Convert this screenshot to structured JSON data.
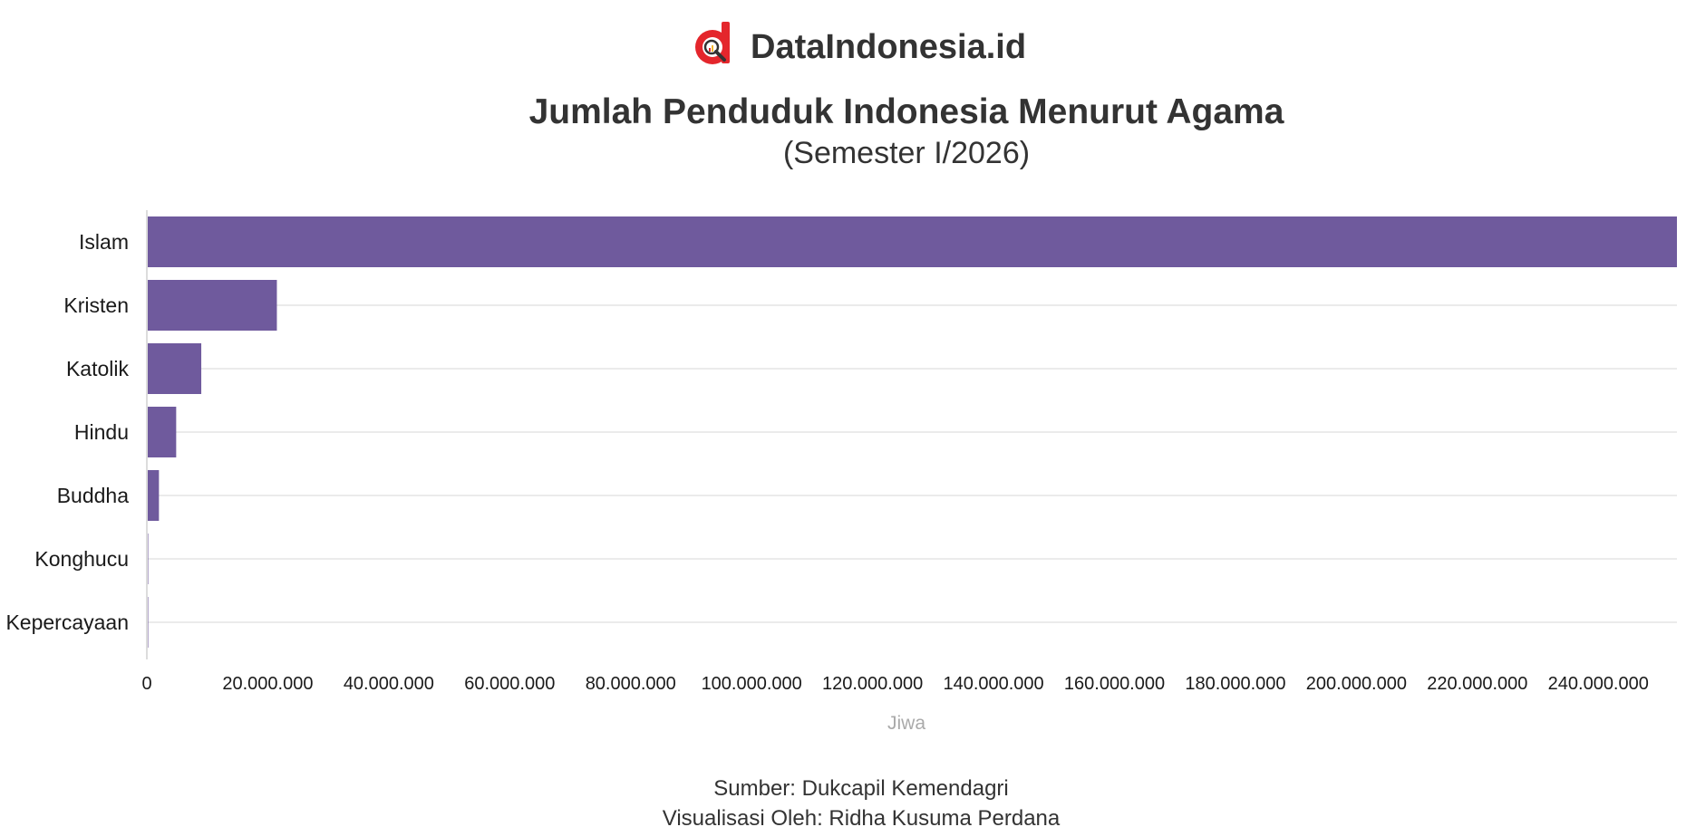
{
  "brand": {
    "name": "DataIndonesia.id",
    "logo_icon": "datainsight-magnifier-logo",
    "logo_color": "#e4262c"
  },
  "chart_data": {
    "type": "bar",
    "orientation": "horizontal",
    "title": "Jumlah Penduduk Indonesia Menurut Agama",
    "subtitle": "(Semester I/2026)",
    "categories": [
      "Islam",
      "Kristen",
      "Katolik",
      "Hindu",
      "Buddha",
      "Konghucu",
      "Kepercayaan"
    ],
    "values": [
      253000000,
      21500000,
      9000000,
      4850000,
      2000000,
      75000,
      100000
    ],
    "xlabel": "Jiwa",
    "ylabel": "",
    "xlim": [
      0,
      253000000
    ],
    "x_ticks": [
      0,
      20000000,
      40000000,
      60000000,
      80000000,
      100000000,
      120000000,
      140000000,
      160000000,
      180000000,
      200000000,
      220000000,
      240000000
    ],
    "x_tick_labels": [
      "0",
      "20.000.000",
      "40.000.000",
      "60.000.000",
      "80.000.000",
      "100.000.000",
      "120.000.000",
      "140.000.000",
      "160.000.000",
      "180.000.000",
      "200.000.000",
      "220.000.000",
      "240.000.000"
    ],
    "grid": "horizontal",
    "legend": "none",
    "bar_color": "#6f5a9d"
  },
  "footer": {
    "source": "Sumber: Dukcapil Kemendagri",
    "credit": "Visualisasi Oleh: Ridha Kusuma Perdana"
  }
}
